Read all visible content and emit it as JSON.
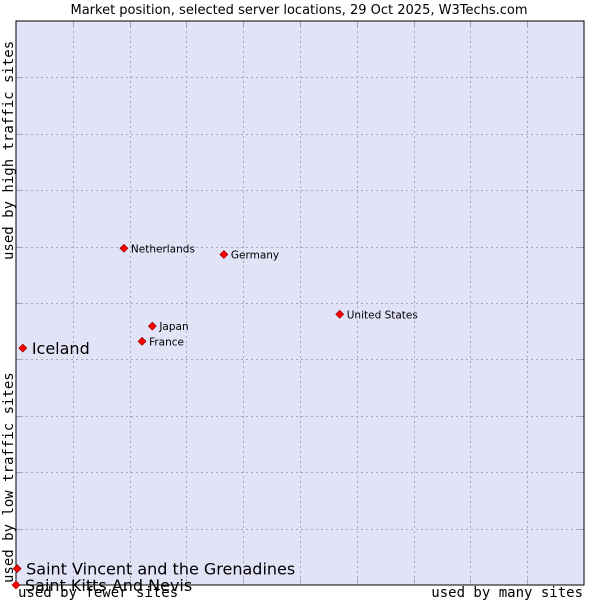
{
  "chart_data": {
    "type": "scatter",
    "title": "Market position, selected server locations, 29 Oct 2025, W3Techs.com",
    "xlabel_left": "used by fewer sites",
    "xlabel_right": "used by many sites",
    "ylabel_bottom": "used by low traffic sites",
    "ylabel_top": "used by high traffic sites",
    "xlim": [
      0,
      1
    ],
    "ylim": [
      0,
      1
    ],
    "grid": true,
    "point_color": "#ff0000",
    "plot_bg": "#e3e3f8",
    "points": [
      {
        "name": "Netherlands",
        "x": 0.19,
        "y": 0.597,
        "size": "small"
      },
      {
        "name": "Germany",
        "x": 0.366,
        "y": 0.586,
        "size": "small"
      },
      {
        "name": "United States",
        "x": 0.57,
        "y": 0.48,
        "size": "small"
      },
      {
        "name": "Japan",
        "x": 0.24,
        "y": 0.459,
        "size": "small"
      },
      {
        "name": "France",
        "x": 0.222,
        "y": 0.432,
        "size": "small"
      },
      {
        "name": "Iceland",
        "x": 0.012,
        "y": 0.42,
        "size": "big"
      },
      {
        "name": "Saint Vincent and the Grenadines",
        "x": 0.002,
        "y": 0.029,
        "size": "big"
      },
      {
        "name": "Saint Kitts And Nevis",
        "x": 0.0,
        "y": 0.0,
        "size": "big"
      }
    ]
  }
}
